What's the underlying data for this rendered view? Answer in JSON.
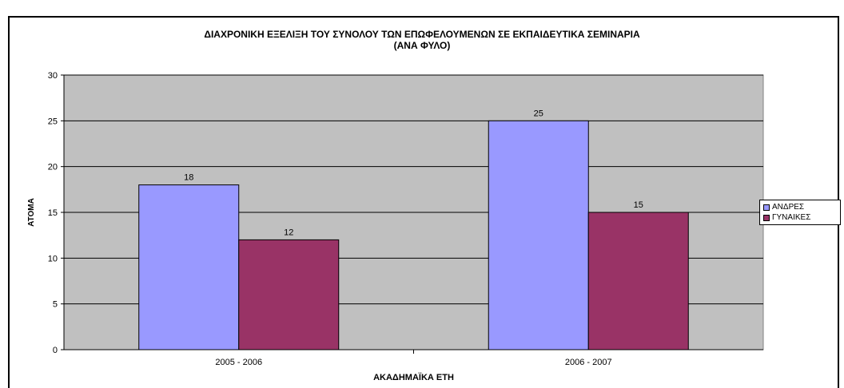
{
  "chart_data": {
    "type": "bar",
    "title": "ΔΙΑΧΡΟΝΙΚΗ ΕΞΕΛΙΞΗ ΤΟΥ ΣΥΝΟΛΟΥ ΤΩΝ ΕΠΩΦΕΛΟΥΜΕΝΩΝ ΣΕ ΕΚΠΑΙΔΕΥΤΙΚΑ ΣΕΜΙΝΑΡΙΑ",
    "subtitle": "(ΑΝΑ ΦΥΛΟ)",
    "xlabel": "ΑΚΑΔΗΜΑΪΚΑ ΕΤΗ",
    "ylabel": "ΑΤΟΜΑ",
    "categories": [
      "2005 - 2006",
      "2006 - 2007"
    ],
    "series": [
      {
        "name": "ΑΝΔΡΕΣ",
        "values": [
          18,
          25
        ],
        "color": "#9999ff"
      },
      {
        "name": "ΓΥΝΑΙΚΕΣ",
        "values": [
          12,
          15
        ],
        "color": "#993366"
      }
    ],
    "ylim": [
      0,
      30
    ],
    "yticks": [
      0,
      5,
      10,
      15,
      20,
      25,
      30
    ],
    "grid": true,
    "plot_background": "#c0c0c0",
    "legend_position": "right"
  }
}
